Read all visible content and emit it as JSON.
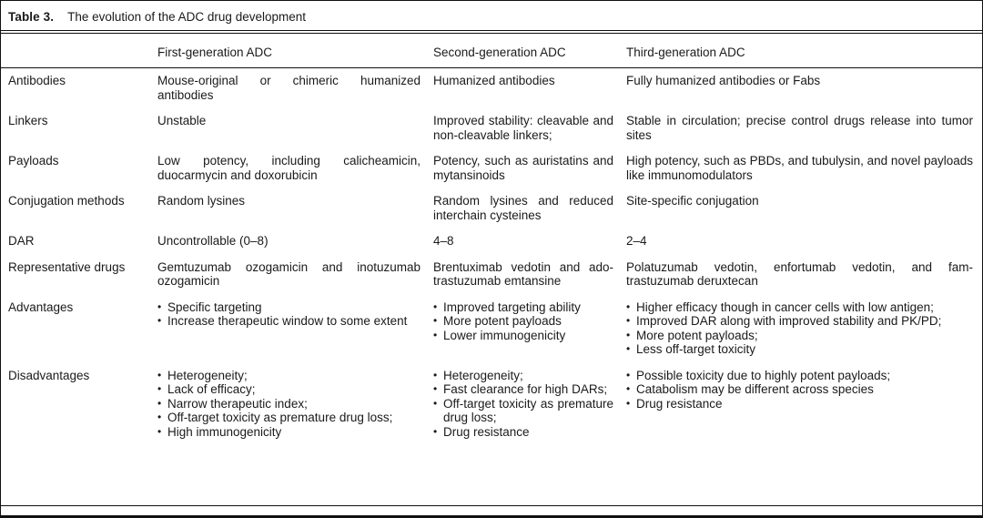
{
  "table": {
    "bullet_char": "•",
    "title_label": "Table 3.",
    "title_text": "The evolution of the ADC drug development",
    "columns": [
      "First-generation ADC",
      "Second-generation ADC",
      "Third-generation ADC"
    ],
    "rows": [
      {
        "label": "Antibodies",
        "cells": [
          "Mouse-original or chimeric humanized antibodies",
          "Humanized antibodies",
          "Fully humanized antibodies or Fabs"
        ]
      },
      {
        "label": "Linkers",
        "cells": [
          "Unstable",
          "Improved stability: cleavable and non-cleavable linkers;",
          "Stable in circulation; precise control drugs release into tumor sites"
        ]
      },
      {
        "label": "Payloads",
        "cells": [
          "Low potency, including calicheamicin, duocarmycin and doxorubicin",
          "Potency, such as auristatins and mytansinoids",
          "High potency, such as PBDs, and tubulysin, and novel payloads like immunomodulators"
        ]
      },
      {
        "label": "Conjugation methods",
        "cells": [
          "Random lysines",
          "Random lysines and reduced interchain cysteines",
          "Site-specific conjugation"
        ]
      },
      {
        "label": "DAR",
        "cells": [
          "Uncontrollable (0–8)",
          "4–8",
          "2–4"
        ]
      },
      {
        "label": "Representative drugs",
        "cells": [
          "Gemtuzumab ozogamicin and inotuzumab ozogamicin",
          "Brentuximab vedotin and ado-trastuzumab emtansine",
          "Polatuzumab vedotin, enfortumab vedotin, and fam-trastuzumab deruxtecan"
        ]
      },
      {
        "label": "Advantages",
        "cells": [
          [
            "Specific targeting",
            "Increase therapeutic window to some extent"
          ],
          [
            "Improved targeting ability",
            "More potent payloads",
            "Lower immunogenicity"
          ],
          [
            "Higher efficacy though in cancer cells with low antigen;",
            "Improved DAR along with improved stability and PK/PD;",
            "More potent payloads;",
            "Less off-target toxicity"
          ]
        ]
      },
      {
        "label": "Disadvantages",
        "cells": [
          [
            "Heterogeneity;",
            "Lack of efficacy;",
            "Narrow therapeutic index;",
            "Off-target toxicity as premature drug loss;",
            "High immunogenicity"
          ],
          [
            "Heterogeneity;",
            "Fast clearance for high DARs;",
            "Off-target toxicity as premature drug loss;",
            "Drug resistance"
          ],
          [
            "Possible toxicity due to highly potent payloads;",
            "Catabolism may be different across species",
            "Drug resistance"
          ]
        ]
      }
    ]
  }
}
